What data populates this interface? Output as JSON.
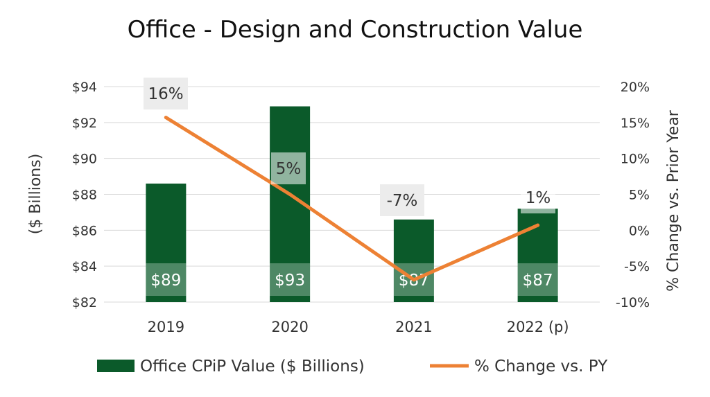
{
  "chart_data": {
    "type": "bar",
    "title": "Office - Design and Construction Value",
    "categories": [
      "2019",
      "2020",
      "2021",
      "2022 (p)"
    ],
    "series": [
      {
        "name": "Office CPiP Value ($ Billions)",
        "type": "bar",
        "axis": "left",
        "values": [
          88.6,
          92.9,
          86.6,
          87.2
        ],
        "labels": [
          "$89",
          "$93",
          "$87",
          "$87"
        ]
      },
      {
        "name": "% Change vs. PY",
        "type": "line",
        "axis": "right",
        "values": [
          15.7,
          5.0,
          -6.9,
          0.7
        ],
        "labels": [
          "16%",
          "5%",
          "-7%",
          "1%"
        ]
      }
    ],
    "ylabel": "($ Billions)",
    "y2label": "% Change vs. Prior Year",
    "ylim": [
      82,
      94
    ],
    "yticks": [
      "$82",
      "$84",
      "$86",
      "$88",
      "$90",
      "$92",
      "$94"
    ],
    "y2lim": [
      -10,
      20
    ],
    "y2ticks": [
      "-10%",
      "-5%",
      "0%",
      "5%",
      "10%",
      "15%",
      "20%"
    ],
    "grid": true,
    "legend": "bottom",
    "colors": {
      "bar": "#0b5a2a",
      "line": "#ed8134",
      "grid": "#d9d9d9",
      "pct_box": "#ececec"
    }
  }
}
